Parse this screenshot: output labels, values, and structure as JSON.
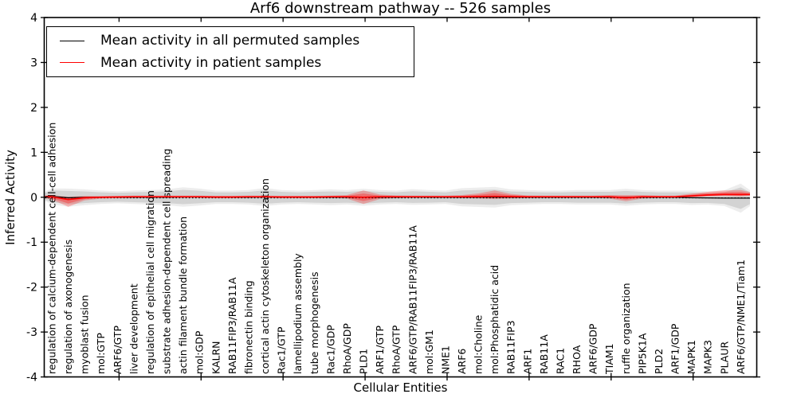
{
  "figure": {
    "title": "Arf6 downstream pathway -- 526 samples",
    "xlabel": "Cellular Entities",
    "ylabel": "Inferred Activity"
  },
  "legend": {
    "items": [
      {
        "label": "Mean activity in all permuted samples",
        "color": "#000000"
      },
      {
        "label": "Mean activity in patient samples",
        "color": "#ff0000"
      }
    ],
    "position": "upper left"
  },
  "chart_data": {
    "type": "area",
    "title": "Arf6 downstream pathway -- 526 samples",
    "xlabel": "Cellular Entities",
    "ylabel": "Inferred Activity",
    "ylim": [
      -4,
      4
    ],
    "yticks": [
      -4,
      -3,
      -2,
      -1,
      0,
      1,
      2,
      3,
      4
    ],
    "x_tick_positions": [
      5,
      10,
      15,
      20,
      25,
      30,
      35,
      40
    ],
    "grid": false,
    "baseline": 0,
    "categories": [
      "regulation of calcium-dependent cell-cell adhesion",
      "regulation of axonogenesis",
      "myoblast fusion",
      "mol:GTP",
      "ARF6/GTP",
      "liver development",
      "regulation of epithelial cell migration",
      "substrate adhesion-dependent cell spreading",
      "actin filament bundle formation",
      "mol:GDP",
      "KALRN",
      "RAB11FIP3/RAB11A",
      "fibronectin binding",
      "cortical actin cytoskeleton organization",
      "Rac1/GTP",
      "lamellipodium assembly",
      "tube morphogenesis",
      "Rac1/GDP",
      "RhoA/GDP",
      "PLD1",
      "ARF1/GTP",
      "RhoA/GTP",
      "ARF6/GTP/RAB11FIP3/RAB11A",
      "mol:GM1",
      "NME1",
      "ARF6",
      "mol:Choline",
      "mol:Phosphatidic acid",
      "RAB11FIP3",
      "ARF1",
      "RAB11A",
      "RAC1",
      "RHOA",
      "ARF6/GDP",
      "TIAM1",
      "ruffle organization",
      "PIP5K1A",
      "PLD2",
      "ARF1/GDP",
      "MAPK1",
      "MAPK3",
      "PLAUR",
      "ARF6/GTP/NME1/Tiam1"
    ],
    "series": [
      {
        "name": "Mean activity in all permuted samples",
        "color": "#000000",
        "values": [
          0.02,
          -0.01,
          0,
          0,
          0,
          0,
          0,
          0,
          0.005,
          0.005,
          0,
          0,
          0,
          0.005,
          0,
          0,
          0,
          0,
          0,
          0,
          0,
          0,
          0.005,
          0,
          0,
          0,
          0,
          0,
          0,
          0,
          0,
          0,
          0,
          0,
          0,
          0,
          0,
          0,
          0,
          -0.01,
          -0.015,
          -0.02,
          -0.02
        ]
      },
      {
        "name": "Mean activity in patient samples",
        "color": "#ff0000",
        "values": [
          0.01,
          -0.05,
          -0.01,
          0,
          0.005,
          0.01,
          0.01,
          0.01,
          0.01,
          0.01,
          0.005,
          0.005,
          0.01,
          0.01,
          0.005,
          0.005,
          0.005,
          0.01,
          0.01,
          0,
          0.01,
          0.01,
          0.01,
          0.01,
          0.01,
          0.01,
          0.015,
          0.02,
          0.015,
          0.01,
          0.01,
          0.01,
          0.01,
          0.01,
          0.01,
          -0.01,
          0.01,
          0.01,
          0.01,
          0.03,
          0.05,
          0.06,
          0.06
        ]
      }
    ],
    "spreads": {
      "permuted_halfwidth": [
        0.13,
        0.15,
        0.13,
        0.11,
        0.1,
        0.11,
        0.12,
        0.13,
        0.16,
        0.14,
        0.11,
        0.11,
        0.12,
        0.15,
        0.12,
        0.11,
        0.12,
        0.13,
        0.12,
        0.14,
        0.12,
        0.11,
        0.13,
        0.12,
        0.11,
        0.15,
        0.16,
        0.17,
        0.13,
        0.12,
        0.11,
        0.11,
        0.12,
        0.12,
        0.12,
        0.14,
        0.12,
        0.11,
        0.11,
        0.12,
        0.11,
        0.13,
        0.24
      ],
      "patient_up": [
        0.04,
        0.06,
        0.04,
        0.03,
        0.025,
        0.025,
        0.025,
        0.025,
        0.025,
        0.025,
        0.025,
        0.025,
        0.025,
        0.025,
        0.025,
        0.025,
        0.025,
        0.025,
        0.04,
        0.15,
        0.05,
        0.03,
        0.025,
        0.025,
        0.025,
        0.04,
        0.07,
        0.13,
        0.06,
        0.03,
        0.025,
        0.025,
        0.025,
        0.025,
        0.04,
        0.06,
        0.04,
        0.025,
        0.025,
        0.05,
        0.07,
        0.09,
        0.1
      ],
      "patient_down": [
        0.06,
        0.16,
        0.06,
        0.03,
        0.025,
        0.025,
        0.025,
        0.025,
        0.025,
        0.025,
        0.025,
        0.025,
        0.025,
        0.025,
        0.025,
        0.025,
        0.025,
        0.025,
        0.04,
        0.15,
        0.05,
        0.03,
        0.025,
        0.025,
        0.025,
        0.03,
        0.04,
        0.06,
        0.04,
        0.03,
        0.025,
        0.025,
        0.025,
        0.025,
        0.04,
        0.08,
        0.04,
        0.025,
        0.025,
        0.03,
        0.03,
        0.03,
        0.04
      ]
    },
    "colors": {
      "permuted_band": "rgba(0,0,0,0.11)",
      "permuted_band_outer": "rgba(0,0,0,0.07)",
      "patient_band": "rgba(255,20,20,0.35)",
      "patient_band_outer": "rgba(255,40,40,0.30)"
    }
  }
}
